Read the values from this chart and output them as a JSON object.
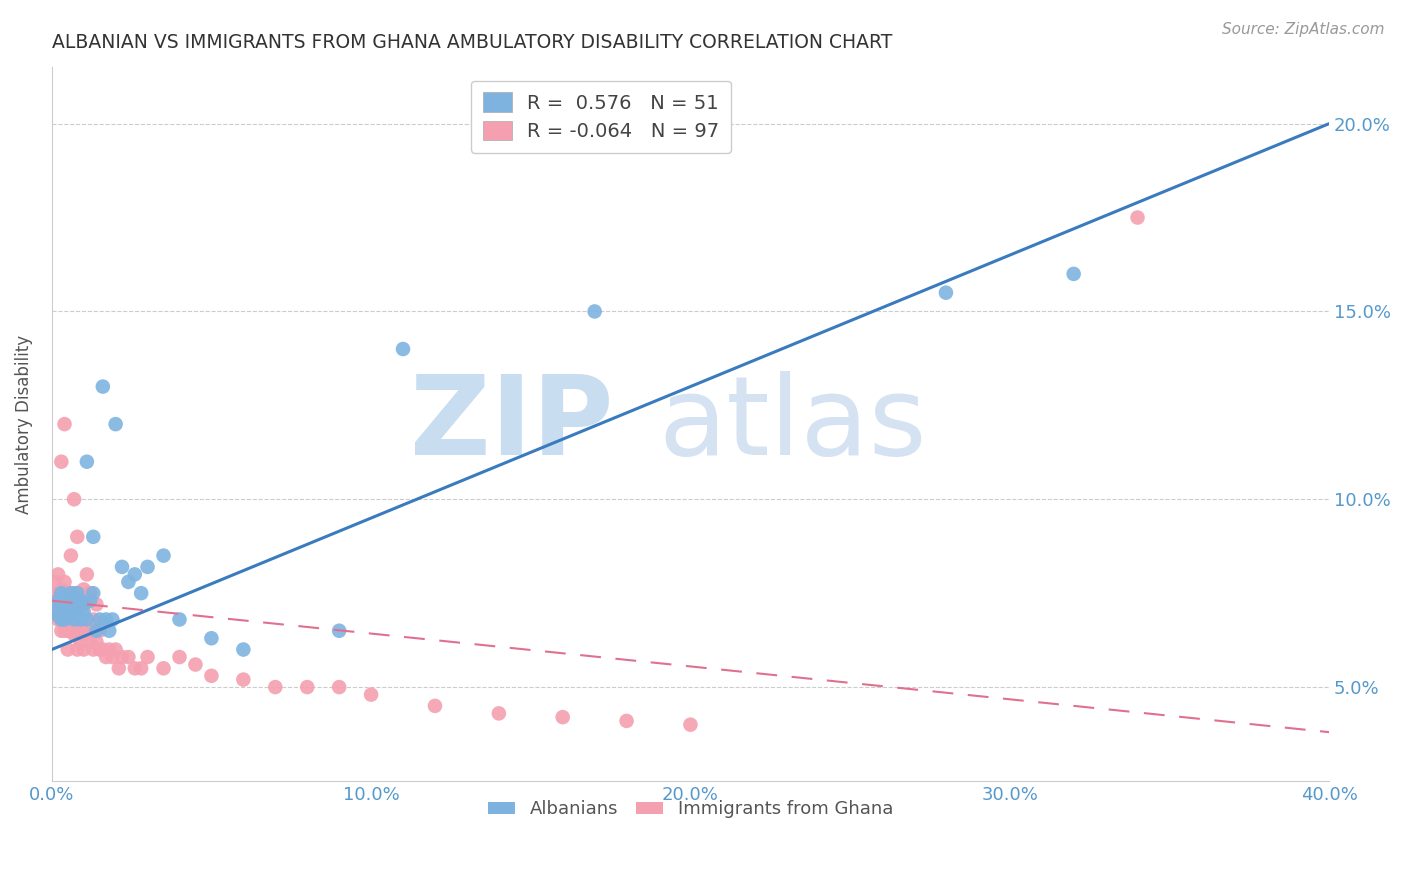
{
  "title": "ALBANIAN VS IMMIGRANTS FROM GHANA AMBULATORY DISABILITY CORRELATION CHART",
  "source": "Source: ZipAtlas.com",
  "ylabel": "Ambulatory Disability",
  "xlim": [
    0.0,
    0.4
  ],
  "ylim": [
    0.025,
    0.215
  ],
  "albanians_color": "#7eb3e0",
  "ghana_color": "#f4a0b0",
  "albanian_R": 0.576,
  "albanian_N": 51,
  "ghana_R": -0.064,
  "ghana_N": 97,
  "legend_labels": [
    "Albanians",
    "Immigrants from Ghana"
  ],
  "blue_line_x": [
    0.0,
    0.4
  ],
  "blue_line_y": [
    0.06,
    0.2
  ],
  "pink_line_x": [
    0.0,
    0.4
  ],
  "pink_line_y": [
    0.073,
    0.038
  ],
  "albanians_x": [
    0.001,
    0.002,
    0.002,
    0.003,
    0.003,
    0.003,
    0.004,
    0.004,
    0.004,
    0.005,
    0.005,
    0.005,
    0.006,
    0.006,
    0.006,
    0.007,
    0.007,
    0.007,
    0.008,
    0.008,
    0.008,
    0.009,
    0.009,
    0.01,
    0.01,
    0.011,
    0.011,
    0.012,
    0.013,
    0.013,
    0.014,
    0.015,
    0.016,
    0.017,
    0.018,
    0.019,
    0.02,
    0.022,
    0.024,
    0.026,
    0.028,
    0.03,
    0.035,
    0.04,
    0.05,
    0.06,
    0.09,
    0.11,
    0.17,
    0.28,
    0.32
  ],
  "albanians_y": [
    0.07,
    0.073,
    0.069,
    0.072,
    0.075,
    0.068,
    0.074,
    0.07,
    0.068,
    0.073,
    0.071,
    0.069,
    0.072,
    0.075,
    0.07,
    0.068,
    0.073,
    0.071,
    0.072,
    0.07,
    0.075,
    0.068,
    0.073,
    0.072,
    0.07,
    0.11,
    0.068,
    0.073,
    0.09,
    0.075,
    0.065,
    0.068,
    0.13,
    0.068,
    0.065,
    0.068,
    0.12,
    0.082,
    0.078,
    0.08,
    0.075,
    0.082,
    0.085,
    0.068,
    0.063,
    0.06,
    0.065,
    0.14,
    0.15,
    0.155,
    0.16
  ],
  "ghana_x": [
    0.001,
    0.001,
    0.002,
    0.002,
    0.002,
    0.002,
    0.002,
    0.003,
    0.003,
    0.003,
    0.003,
    0.003,
    0.003,
    0.003,
    0.004,
    0.004,
    0.004,
    0.004,
    0.004,
    0.004,
    0.004,
    0.005,
    0.005,
    0.005,
    0.005,
    0.005,
    0.005,
    0.005,
    0.006,
    0.006,
    0.006,
    0.006,
    0.006,
    0.006,
    0.006,
    0.007,
    0.007,
    0.007,
    0.007,
    0.007,
    0.007,
    0.007,
    0.007,
    0.008,
    0.008,
    0.008,
    0.008,
    0.008,
    0.008,
    0.009,
    0.009,
    0.009,
    0.009,
    0.009,
    0.01,
    0.01,
    0.01,
    0.01,
    0.01,
    0.011,
    0.011,
    0.011,
    0.012,
    0.012,
    0.012,
    0.013,
    0.013,
    0.014,
    0.014,
    0.015,
    0.015,
    0.016,
    0.017,
    0.018,
    0.019,
    0.02,
    0.021,
    0.022,
    0.024,
    0.026,
    0.028,
    0.03,
    0.035,
    0.04,
    0.045,
    0.05,
    0.06,
    0.07,
    0.08,
    0.09,
    0.1,
    0.12,
    0.14,
    0.16,
    0.18,
    0.2,
    0.34
  ],
  "ghana_y": [
    0.072,
    0.078,
    0.07,
    0.075,
    0.08,
    0.068,
    0.074,
    0.072,
    0.076,
    0.11,
    0.068,
    0.073,
    0.07,
    0.065,
    0.07,
    0.074,
    0.078,
    0.065,
    0.068,
    0.12,
    0.072,
    0.065,
    0.07,
    0.073,
    0.068,
    0.075,
    0.065,
    0.06,
    0.068,
    0.072,
    0.085,
    0.065,
    0.07,
    0.075,
    0.065,
    0.065,
    0.07,
    0.1,
    0.068,
    0.064,
    0.068,
    0.072,
    0.075,
    0.068,
    0.072,
    0.075,
    0.09,
    0.065,
    0.06,
    0.064,
    0.068,
    0.072,
    0.062,
    0.065,
    0.065,
    0.068,
    0.072,
    0.076,
    0.06,
    0.064,
    0.068,
    0.08,
    0.062,
    0.065,
    0.075,
    0.06,
    0.068,
    0.062,
    0.072,
    0.06,
    0.065,
    0.06,
    0.058,
    0.06,
    0.058,
    0.06,
    0.055,
    0.058,
    0.058,
    0.055,
    0.055,
    0.058,
    0.055,
    0.058,
    0.056,
    0.053,
    0.052,
    0.05,
    0.05,
    0.05,
    0.048,
    0.045,
    0.043,
    0.042,
    0.041,
    0.04,
    0.175
  ]
}
